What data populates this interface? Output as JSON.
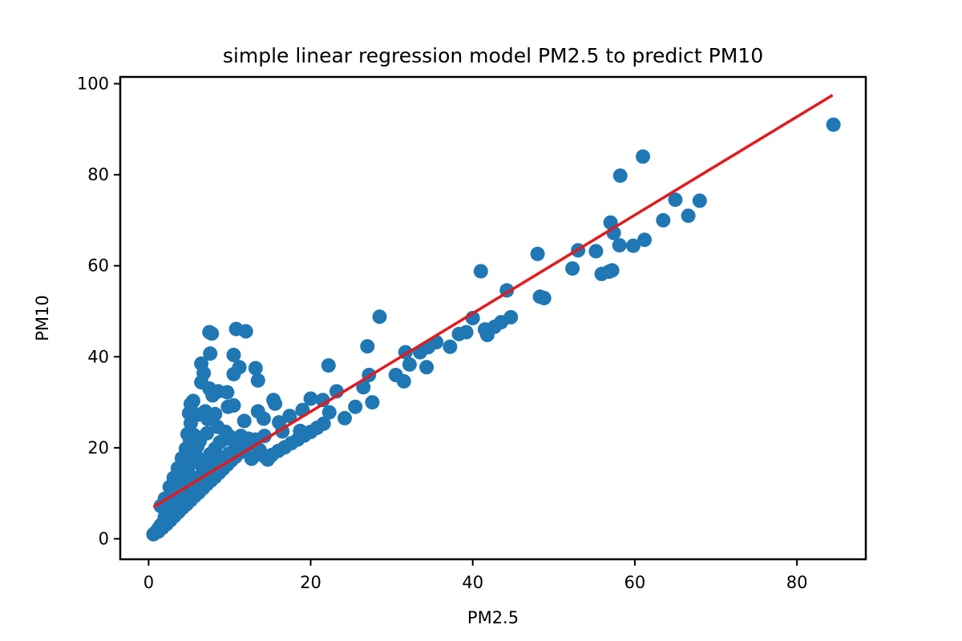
{
  "chart_data": {
    "type": "scatter",
    "title": "simple linear regression model PM2.5 to predict PM10",
    "xlabel": "PM2.5",
    "ylabel": "PM10",
    "xlim": [
      -3.5,
      88.5
    ],
    "ylim": [
      -4.5,
      101.5
    ],
    "xticks": [
      0,
      20,
      40,
      60,
      80
    ],
    "yticks": [
      0,
      20,
      40,
      60,
      80,
      100
    ],
    "grid": false,
    "point_color": "#1f77b4",
    "line_color": "#e31a1c",
    "series": [
      {
        "kind": "points",
        "points": [
          [
            84.5,
            91
          ],
          [
            61,
            84
          ],
          [
            58.2,
            79.8
          ],
          [
            57,
            69.5
          ],
          [
            57.4,
            67.2
          ],
          [
            58.1,
            64.5
          ],
          [
            59.8,
            64.4
          ],
          [
            61.2,
            65.7
          ],
          [
            65,
            74.5
          ],
          [
            68,
            74.3
          ],
          [
            66.6,
            71
          ],
          [
            63.5,
            70
          ],
          [
            48,
            62.6
          ],
          [
            53,
            63.4
          ],
          [
            55.2,
            63.2
          ],
          [
            52.3,
            59.4
          ],
          [
            55.9,
            58.2
          ],
          [
            56.8,
            58.7
          ],
          [
            57.2,
            59
          ],
          [
            41,
            58.8
          ],
          [
            44.2,
            54.6
          ],
          [
            48.3,
            53.2
          ],
          [
            48.8,
            52.9
          ],
          [
            40,
            48.5
          ],
          [
            41.5,
            46
          ],
          [
            43.5,
            47.6
          ],
          [
            44.7,
            48.7
          ],
          [
            42.7,
            46.6
          ],
          [
            39.2,
            45.4
          ],
          [
            41.8,
            44.8
          ],
          [
            38.3,
            45
          ],
          [
            37.2,
            42.2
          ],
          [
            35.5,
            43.2
          ],
          [
            34.5,
            42.1
          ],
          [
            34.3,
            37.7
          ],
          [
            33.5,
            41
          ],
          [
            31.7,
            41
          ],
          [
            32.2,
            38.3
          ],
          [
            31.5,
            34.6
          ],
          [
            30.5,
            36
          ],
          [
            28.5,
            48.8
          ],
          [
            27,
            42.3
          ],
          [
            27.2,
            36
          ],
          [
            26.5,
            33.3
          ],
          [
            27.6,
            30
          ],
          [
            25.5,
            29
          ],
          [
            24.2,
            26.5
          ],
          [
            22.3,
            27.8
          ],
          [
            21.5,
            30.5
          ],
          [
            20,
            30.8
          ],
          [
            23.2,
            32.4
          ],
          [
            22.2,
            38.1
          ],
          [
            19,
            28.3
          ],
          [
            18.7,
            23.7
          ],
          [
            17.4,
            27
          ],
          [
            16.1,
            25.6
          ],
          [
            14.2,
            26.4
          ],
          [
            15.4,
            30.5
          ],
          [
            15.6,
            29.7
          ],
          [
            13.2,
            37.5
          ],
          [
            13.5,
            34.8
          ],
          [
            12,
            45.6
          ],
          [
            10.8,
            46.1
          ],
          [
            10.5,
            40.4
          ],
          [
            11.2,
            37.7
          ],
          [
            10.5,
            36.2
          ],
          [
            9.7,
            32.2
          ],
          [
            8.6,
            32.4
          ],
          [
            7.5,
            45.4
          ],
          [
            7.8,
            45.1
          ],
          [
            7.6,
            40.7
          ],
          [
            6.5,
            38.5
          ],
          [
            6.8,
            36.4
          ],
          [
            6.5,
            34.4
          ],
          [
            7.9,
            31.5
          ],
          [
            7.5,
            33
          ],
          [
            5.5,
            30.3
          ],
          [
            5.2,
            29.6
          ],
          [
            5,
            27.6
          ],
          [
            5.2,
            25.4
          ],
          [
            4.8,
            23
          ],
          [
            7.3,
            26.3
          ],
          [
            7.2,
            23.2
          ],
          [
            8.2,
            27.4
          ],
          [
            9.8,
            29
          ],
          [
            10.5,
            29.3
          ],
          [
            11.8,
            25.9
          ],
          [
            12.3,
            21.2
          ],
          [
            13.5,
            28
          ],
          [
            14.3,
            22.6
          ],
          [
            16.5,
            23.6
          ],
          [
            12.7,
            17.6
          ],
          [
            7,
            28
          ],
          [
            6.2,
            27.3
          ],
          [
            8.5,
            24.6
          ],
          [
            9.5,
            23.5
          ],
          [
            0.6,
            1
          ],
          [
            0.9,
            1.5
          ],
          [
            1.2,
            2.2
          ],
          [
            1.5,
            3
          ],
          [
            1.8,
            3.6
          ],
          [
            2,
            4.8
          ],
          [
            2.3,
            5.5
          ],
          [
            2.6,
            6.2
          ],
          [
            3,
            7.3
          ],
          [
            3.3,
            8.2
          ],
          [
            3.6,
            9.5
          ],
          [
            3.9,
            10.6
          ],
          [
            4.2,
            12.2
          ],
          [
            4.5,
            13.5
          ],
          [
            4.8,
            15.1
          ],
          [
            5.1,
            16.4
          ],
          [
            5.4,
            17.6
          ],
          [
            5.7,
            19.2
          ],
          [
            6,
            20.3
          ],
          [
            6.3,
            21.5
          ],
          [
            1.5,
            7.2
          ],
          [
            2,
            8.8
          ],
          [
            2.6,
            11.4
          ],
          [
            3.1,
            13.4
          ],
          [
            3.6,
            15.5
          ],
          [
            4.1,
            17.7
          ],
          [
            4.6,
            19.8
          ],
          [
            5.1,
            21.8
          ],
          [
            5.6,
            22.8
          ],
          [
            1.2,
            1.6
          ],
          [
            1.7,
            2.4
          ],
          [
            2.2,
            3.2
          ],
          [
            2.7,
            4.1
          ],
          [
            3.2,
            5
          ],
          [
            3.7,
            5.9
          ],
          [
            4.2,
            6.8
          ],
          [
            4.7,
            7.6
          ],
          [
            5.2,
            8.5
          ],
          [
            5.7,
            9.4
          ],
          [
            6.2,
            10.2
          ],
          [
            6.7,
            11.1
          ],
          [
            7.2,
            12
          ],
          [
            7.7,
            12.8
          ],
          [
            8.2,
            13.6
          ],
          [
            8.7,
            14.5
          ],
          [
            9.2,
            15.4
          ],
          [
            9.7,
            16.3
          ],
          [
            10.2,
            17.2
          ],
          [
            10.7,
            18
          ],
          [
            11.2,
            18.9
          ],
          [
            11.7,
            19.8
          ],
          [
            12.2,
            20.5
          ],
          [
            12.7,
            21.3
          ],
          [
            13.2,
            21.8
          ],
          [
            13.7,
            19.5
          ],
          [
            14.2,
            18.2
          ],
          [
            14.7,
            17.4
          ],
          [
            15.2,
            18.4
          ],
          [
            16,
            19.3
          ],
          [
            16.8,
            20.1
          ],
          [
            17.6,
            21
          ],
          [
            18.4,
            21.8
          ],
          [
            19.2,
            22.7
          ],
          [
            20,
            23.5
          ],
          [
            20.8,
            24.4
          ],
          [
            21.6,
            25.3
          ],
          [
            6.5,
            16.2
          ],
          [
            7,
            17.5
          ],
          [
            7.6,
            18.6
          ],
          [
            8.2,
            19.8
          ],
          [
            8.8,
            21.2
          ],
          [
            9.4,
            21.9
          ],
          [
            10,
            22.5
          ],
          [
            10.6,
            21.5
          ],
          [
            11.4,
            22.6
          ],
          [
            6.1,
            13.5
          ],
          [
            6.8,
            14.8
          ],
          [
            7.5,
            15.3
          ],
          [
            8.3,
            16.7
          ],
          [
            9.1,
            17.6
          ],
          [
            9.9,
            18.7
          ],
          [
            10.7,
            19.9
          ],
          [
            11.5,
            20.9
          ],
          [
            12.3,
            22
          ],
          [
            4,
            9.8
          ],
          [
            4.6,
            11
          ],
          [
            5.3,
            12.5
          ],
          [
            6,
            11.6
          ],
          [
            6.7,
            13.2
          ],
          [
            7.4,
            14
          ],
          [
            8.1,
            14.5
          ],
          [
            8.8,
            15.3
          ],
          [
            9.5,
            16.1
          ]
        ]
      },
      {
        "kind": "line",
        "points": [
          [
            0.6,
            7
          ],
          [
            84.4,
            97.5
          ]
        ]
      }
    ]
  }
}
